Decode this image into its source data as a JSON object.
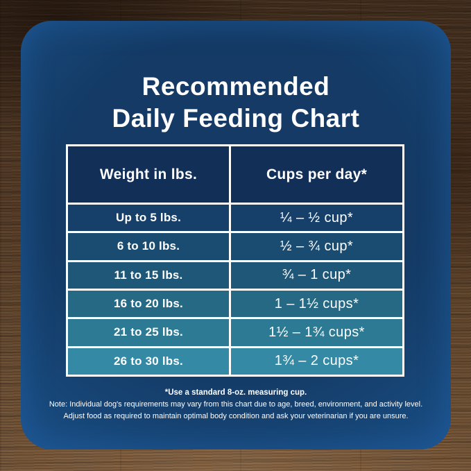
{
  "title": {
    "line1": "Recommended",
    "line2": "Daily Feeding Chart"
  },
  "table": {
    "header": {
      "weight": "Weight in lbs.",
      "cups": "Cups per day*"
    },
    "rows": [
      {
        "weight": "Up to 5 lbs.",
        "cups": "¼ – ½ cup*",
        "bg": "#16406A"
      },
      {
        "weight": "6 to 10 lbs.",
        "cups": "½ – ¾ cup*",
        "bg": "#1A4B71"
      },
      {
        "weight": "11 to 15 lbs.",
        "cups": "¾ – 1 cup*",
        "bg": "#1F5779"
      },
      {
        "weight": "16 to 20 lbs.",
        "cups": "1 – 1½ cups*",
        "bg": "#256985"
      },
      {
        "weight": "21 to 25 lbs.",
        "cups": "1½ – 1¾ cups*",
        "bg": "#2C7A94"
      },
      {
        "weight": "26 to 30 lbs.",
        "cups": "1¾ – 2 cups*",
        "bg": "#3489A4"
      }
    ]
  },
  "footnote": {
    "line1": "*Use a standard 8-oz. measuring cup.",
    "line2": "Note: Individual dog's requirements may vary from this chart due to age, breed, environment, and activity level.",
    "line3": "Adjust food as required to maintain optimal body condition and ask your veterinarian if you are unsure."
  },
  "colors": {
    "card_background": "#143A65",
    "card_edge_glow": "#1A4D83",
    "header_cell": "#122F58",
    "table_border": "#FFFFFF",
    "text": "#FFFFFF",
    "wood_dark": "#3F2C1D",
    "wood_light": "#765639"
  }
}
